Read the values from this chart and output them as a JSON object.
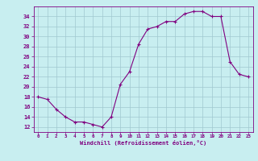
{
  "x": [
    0,
    1,
    2,
    3,
    4,
    5,
    6,
    7,
    8,
    9,
    10,
    11,
    12,
    13,
    14,
    15,
    16,
    17,
    18,
    19,
    20,
    21,
    22,
    23
  ],
  "y": [
    18,
    17.5,
    15.5,
    14,
    13,
    13,
    12.5,
    12,
    14,
    20.5,
    23,
    28.5,
    31.5,
    32,
    33,
    33,
    34.5,
    35,
    35,
    34,
    34,
    25,
    22.5,
    22
  ],
  "line_color": "#800080",
  "marker_color": "#800080",
  "bg_color": "#c8eef0",
  "grid_color": "#a0c8d0",
  "xlabel": "Windchill (Refroidissement éolien,°C)",
  "xlabel_color": "#800080",
  "tick_color": "#800080",
  "ylim": [
    11,
    36
  ],
  "xlim": [
    -0.5,
    23.5
  ],
  "yticks": [
    12,
    14,
    16,
    18,
    20,
    22,
    24,
    26,
    28,
    30,
    32,
    34
  ],
  "xticks": [
    0,
    1,
    2,
    3,
    4,
    5,
    6,
    7,
    8,
    9,
    10,
    11,
    12,
    13,
    14,
    15,
    16,
    17,
    18,
    19,
    20,
    21,
    22,
    23
  ]
}
